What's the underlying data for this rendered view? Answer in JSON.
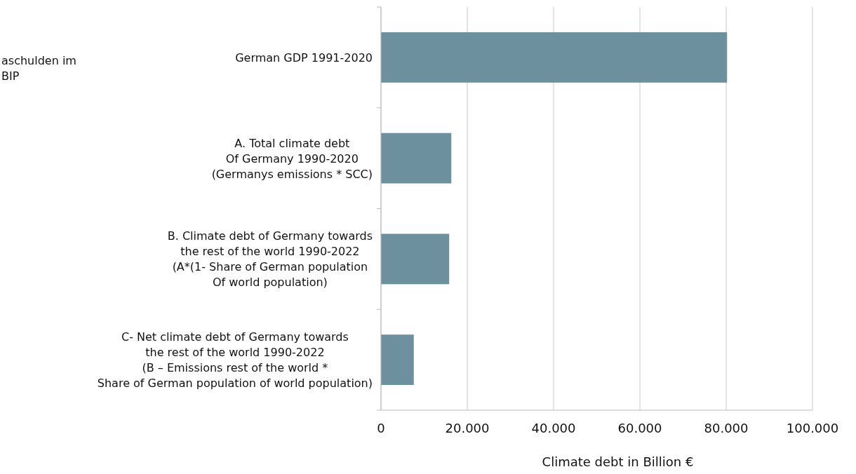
{
  "chart_data": {
    "type": "bar",
    "orientation": "horizontal",
    "xlabel": "Climate debt in Billion €",
    "categories": [
      "German GDP 1991-2020",
      "A. Total climate debt\nOf Germany 1990-2020\n(Germanys emissions * SCC)",
      "B. Climate debt of Germany towards\nthe rest of the world 1990-2022\n(A*(1- Share of German population\nOf world population)",
      "C- Net climate debt of Germany towards\nthe rest of the world 1990-2022\n(B – Emissions rest of the world *\nShare of German population of world population)"
    ],
    "values": [
      80200,
      16300,
      15800,
      7600
    ],
    "color": "#6d909f",
    "xlim": [
      0,
      100000
    ],
    "xticks": [
      0,
      {
        "value": 20000,
        "label": "20.000"
      },
      {
        "value": 40000,
        "label": "40.000"
      },
      {
        "value": 60000,
        "label": "60.000"
      },
      {
        "value": 80000,
        "label": "80.000"
      },
      {
        "value": 100000,
        "label": "100.000"
      }
    ],
    "grid": "x",
    "annotations": [
      "aschulden im\nBIP"
    ]
  }
}
